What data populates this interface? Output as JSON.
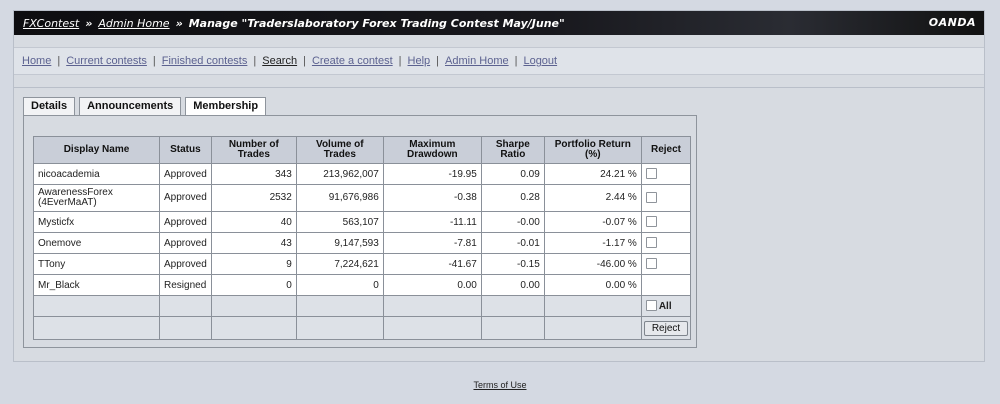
{
  "header": {
    "crumb_fxcontest": "FXContest",
    "crumb_admin": "Admin Home",
    "separator": "»",
    "title": "Manage \"Traderslaboratory Forex Trading Contest May/June\"",
    "brand": "OANDA"
  },
  "nav": {
    "items": [
      {
        "label": "Home"
      },
      {
        "label": "Current contests"
      },
      {
        "label": "Finished contests"
      },
      {
        "label": "Search"
      },
      {
        "label": "Create a contest"
      },
      {
        "label": "Help"
      },
      {
        "label": "Admin Home"
      },
      {
        "label": "Logout"
      }
    ]
  },
  "tabs": [
    {
      "label": "Details"
    },
    {
      "label": "Announcements"
    },
    {
      "label": "Membership"
    }
  ],
  "table": {
    "headers": [
      "Display Name",
      "Status",
      "Number of Trades",
      "Volume of Trades",
      "Maximum Drawdown",
      "Sharpe Ratio",
      "Portfolio Return (%)",
      "Reject"
    ],
    "rows": [
      {
        "name": "nicoacademia",
        "status": "Approved",
        "trades": "343",
        "volume": "213,962,007",
        "drawdown": "-19.95",
        "sharpe": "0.09",
        "return": "24.21 %",
        "has_checkbox": true
      },
      {
        "name": "AwarenessForex (4EverMaAT)",
        "status": "Approved",
        "trades": "2532",
        "volume": "91,676,986",
        "drawdown": "-0.38",
        "sharpe": "0.28",
        "return": "2.44 %",
        "has_checkbox": true
      },
      {
        "name": "Mysticfx",
        "status": "Approved",
        "trades": "40",
        "volume": "563,107",
        "drawdown": "-11.11",
        "sharpe": "-0.00",
        "return": "-0.07 %",
        "has_checkbox": true
      },
      {
        "name": "Onemove",
        "status": "Approved",
        "trades": "43",
        "volume": "9,147,593",
        "drawdown": "-7.81",
        "sharpe": "-0.01",
        "return": "-1.17 %",
        "has_checkbox": true
      },
      {
        "name": "TTony",
        "status": "Approved",
        "trades": "9",
        "volume": "7,224,621",
        "drawdown": "-41.67",
        "sharpe": "-0.15",
        "return": "-46.00 %",
        "has_checkbox": true
      },
      {
        "name": "Mr_Black",
        "status": "Resigned",
        "trades": "0",
        "volume": "0",
        "drawdown": "0.00",
        "sharpe": "0.00",
        "return": "0.00 %",
        "has_checkbox": false
      }
    ],
    "all_label": "All",
    "reject_button": "Reject"
  },
  "footer": {
    "terms": "Terms of Use"
  }
}
